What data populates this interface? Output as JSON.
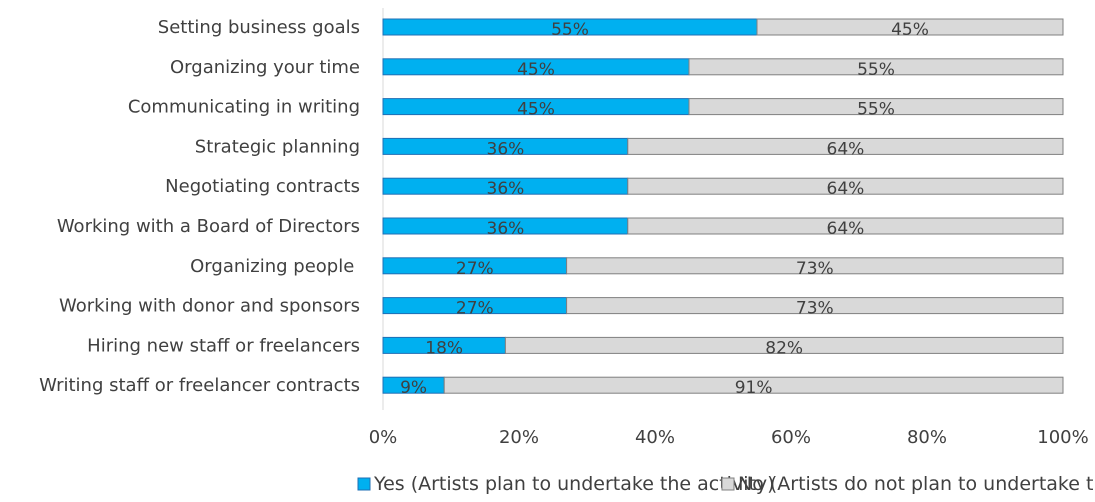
{
  "chart_data": {
    "type": "bar",
    "orientation": "horizontal",
    "stacked": true,
    "categories": [
      "Setting business goals",
      "Organizing your time",
      "Communicating in writing",
      "Strategic planning",
      "Negotiating contracts",
      "Working with a Board of Directors",
      "Organizing people ",
      "Working with donor and sponsors",
      "Hiring new staff or freelancers",
      "Writing staff or freelancer contracts"
    ],
    "series": [
      {
        "name": "Yes (Artists plan to undertake the activity)",
        "color": "#00B0F0",
        "values": [
          55,
          45,
          45,
          36,
          36,
          36,
          27,
          27,
          18,
          9
        ]
      },
      {
        "name": "No (Artists do not plan to undertake the activity)",
        "color": "#D9D9D9",
        "values": [
          45,
          55,
          55,
          64,
          64,
          64,
          73,
          73,
          82,
          91
        ]
      }
    ],
    "value_suffix": "%",
    "xlim": [
      0,
      100
    ],
    "xticks": [
      "0%",
      "20%",
      "40%",
      "60%",
      "80%",
      "100%"
    ],
    "legend_position": "bottom",
    "grid": false,
    "title": "",
    "xlabel": "",
    "ylabel": ""
  }
}
